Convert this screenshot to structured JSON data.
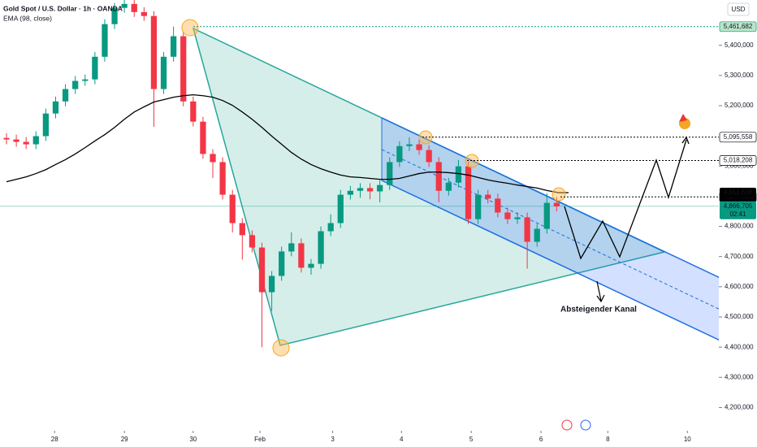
{
  "chart_data": {
    "type": "candlestick",
    "title": "Gold Spot / U.S. Dollar · 1h · OANDA",
    "currency": "USD",
    "up_color": "#089981",
    "down_color": "#f23645",
    "x": [
      0,
      1,
      2,
      3,
      4,
      5,
      6,
      7,
      8,
      9,
      10,
      11,
      12,
      13,
      14,
      15,
      16,
      17,
      18,
      19,
      20,
      21,
      22,
      23,
      24,
      25,
      26,
      27,
      28,
      29,
      30,
      31,
      32,
      33,
      34,
      35,
      36,
      37,
      38,
      39,
      40,
      41,
      42,
      43,
      44,
      45,
      46,
      47,
      48,
      49,
      50,
      51,
      52,
      53,
      54,
      55,
      56
    ],
    "open": [
      5093000,
      5088000,
      5080000,
      5072000,
      5099000,
      5174000,
      5214000,
      5255000,
      5282000,
      5287000,
      5362000,
      5470000,
      5524000,
      5537000,
      5510000,
      5497000,
      5255000,
      5362000,
      5430000,
      5214000,
      5147000,
      5040000,
      5013000,
      4905000,
      4811000,
      4771000,
      4730000,
      4582000,
      4636000,
      4717000,
      4744000,
      4663000,
      4676000,
      4784000,
      4811000,
      4905000,
      4918000,
      4927000,
      4916000,
      4937000,
      5013000,
      5066000,
      5072000,
      5053000,
      5013000,
      4918000,
      4945000,
      4999000,
      4824000,
      4905000,
      4892000,
      4846000,
      4824000,
      4830000,
      4749000,
      4792000,
      4878000
    ],
    "high": [
      5109000,
      5104000,
      5096000,
      5115000,
      5190000,
      5230000,
      5271000,
      5298000,
      5303000,
      5378000,
      5486000,
      5540000,
      5560000,
      5553000,
      5526000,
      5513000,
      5378000,
      5462000,
      5446000,
      5230000,
      5163000,
      5056000,
      5029000,
      4921000,
      4827000,
      4787000,
      4746000,
      4652000,
      4733000,
      4780000,
      4760000,
      4692000,
      4800000,
      4840000,
      4921000,
      4934000,
      4943000,
      4943000,
      4953000,
      5029000,
      5082000,
      5095000,
      5088000,
      5069000,
      5029000,
      4961000,
      5020000,
      5015000,
      4921000,
      4921000,
      4908000,
      4862000,
      4846000,
      4846000,
      4808000,
      4910000,
      4898000
    ],
    "low": [
      5072000,
      5064000,
      5056000,
      5056000,
      5083000,
      5158000,
      5198000,
      5239000,
      5266000,
      5271000,
      5346000,
      5454000,
      5508000,
      5494000,
      5481000,
      5130000,
      5239000,
      5346000,
      5198000,
      5131000,
      5024000,
      4960000,
      4889000,
      4780000,
      4690000,
      4714000,
      4400000,
      4520000,
      4620000,
      4701000,
      4647000,
      4640000,
      4660000,
      4768000,
      4795000,
      4889000,
      4895000,
      4890000,
      4880000,
      4921000,
      4997000,
      5050000,
      5037000,
      4997000,
      4880000,
      4902000,
      4929000,
      4808000,
      4808000,
      4876000,
      4830000,
      4808000,
      4808000,
      4660000,
      4733000,
      4776000,
      4850000
    ],
    "close": [
      5088000,
      5080000,
      5072000,
      5099000,
      5174000,
      5214000,
      5255000,
      5282000,
      5287000,
      5362000,
      5470000,
      5524000,
      5537000,
      5510000,
      5497000,
      5255000,
      5362000,
      5430000,
      5214000,
      5147000,
      5040000,
      5013000,
      4905000,
      4811000,
      4771000,
      4730000,
      4582000,
      4636000,
      4717000,
      4744000,
      4663000,
      4676000,
      4784000,
      4811000,
      4905000,
      4918000,
      4927000,
      4916000,
      4937000,
      5013000,
      5066000,
      5072000,
      5053000,
      5013000,
      4918000,
      4945000,
      4999000,
      4824000,
      4905000,
      4892000,
      4846000,
      4824000,
      4830000,
      4749000,
      4792000,
      4878000,
      4866705
    ],
    "ema": {
      "name": "EMA (98, close)",
      "color": "#000000",
      "values": [
        4948000,
        4956000,
        4964000,
        4975000,
        4988000,
        5005000,
        5021000,
        5040000,
        5061000,
        5083000,
        5104000,
        5128000,
        5155000,
        5179000,
        5196000,
        5212000,
        5220000,
        5228000,
        5233000,
        5236000,
        5233000,
        5228000,
        5217000,
        5201000,
        5179000,
        5155000,
        5128000,
        5099000,
        5072000,
        5045000,
        5023000,
        5005000,
        4991000,
        4980000,
        4970000,
        4964000,
        4962000,
        4959000,
        4956000,
        4956000,
        4959000,
        4967000,
        4975000,
        4980000,
        4980000,
        4978000,
        4975000,
        4970000,
        4962000,
        4954000,
        4948000,
        4943000,
        4937000,
        4932000,
        4927000,
        4919000,
        4913000
      ],
      "last_label": {
        "value": 4911838,
        "label": "4,911,838"
      }
    },
    "xlim": [
      -0.66,
      72.5
    ],
    "xticks": [
      {
        "value": 4.9,
        "label": "28"
      },
      {
        "value": 12.0,
        "label": "29"
      },
      {
        "value": 19.0,
        "label": "30"
      },
      {
        "value": 25.8,
        "label": "Feb"
      },
      {
        "value": 33.2,
        "label": "3"
      },
      {
        "value": 40.2,
        "label": "4"
      },
      {
        "value": 47.3,
        "label": "5"
      },
      {
        "value": 54.4,
        "label": "6"
      },
      {
        "value": 61.2,
        "label": "8"
      },
      {
        "value": 69.3,
        "label": "10"
      }
    ],
    "ylim": [
      4150000,
      5550000
    ],
    "yticks": [
      {
        "value": 5400000,
        "label": "5,400,000"
      },
      {
        "value": 5300000,
        "label": "5,300,000"
      },
      {
        "value": 5200000,
        "label": "5,200,000"
      },
      {
        "value": 5000000,
        "label": "5,000,000"
      },
      {
        "value": 4800000,
        "label": "4,800,000"
      },
      {
        "value": 4700000,
        "label": "4,700,000"
      },
      {
        "value": 4600000,
        "label": "4,600,000"
      },
      {
        "value": 4500000,
        "label": "4,500,000"
      },
      {
        "value": 4400000,
        "label": "4,400,000"
      },
      {
        "value": 4300000,
        "label": "4,300,000"
      },
      {
        "value": 4200000,
        "label": "4,200,000"
      }
    ],
    "levels": [
      {
        "value": 5461682,
        "label": "5,461,682",
        "color": "#089981",
        "box_fill": "#b9e4c9",
        "text_color": "#000000"
      },
      {
        "value": 5095558,
        "label": "5,095,558",
        "color": "#000000",
        "box_fill": "#ffffff",
        "text_color": "#000000"
      },
      {
        "value": 5018208,
        "label": "5,018,208",
        "color": "#000000",
        "box_fill": "#ffffff",
        "text_color": "#000000"
      },
      {
        "value": 4897886,
        "label": "4,897,886",
        "color": "#000000",
        "box_fill": "#000000",
        "text_color": "#ffffff"
      }
    ],
    "last_price": {
      "value": 4866705,
      "label": "4,866,705",
      "countdown": "02:41",
      "color": "#089981"
    },
    "annotation": "Absteigender Kanal"
  }
}
